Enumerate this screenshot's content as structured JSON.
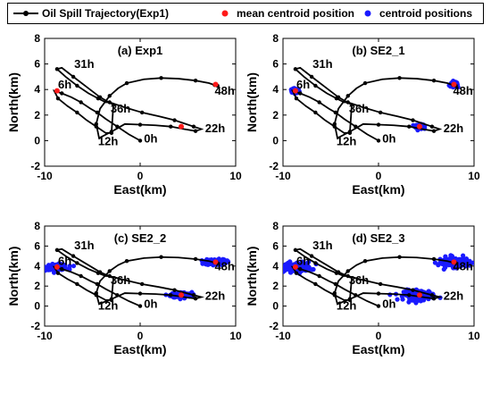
{
  "legend": {
    "trajectory": "Oil Spill Trajectory(Exp1)",
    "mean": "mean centroid position",
    "centroids": "centroid positions"
  },
  "colors": {
    "trajectory": "#000000",
    "mean": "#ff1a1a",
    "centroids": "#1a1aff"
  },
  "chart_data": [
    {
      "type": "scatter",
      "title": "(a) Exp1",
      "xlabel": "East(km)",
      "ylabel": "North(km)",
      "xlim": [
        -10,
        10
      ],
      "ylim": [
        -2,
        8
      ],
      "xticks": [
        -10,
        0,
        10
      ],
      "yticks": [
        -2,
        0,
        2,
        4,
        6,
        8
      ],
      "show_clouds": false
    },
    {
      "type": "scatter",
      "title": "(b) SE2_1",
      "xlabel": "East(km)",
      "ylabel": "North(km)",
      "xlim": [
        -10,
        10
      ],
      "ylim": [
        -2,
        8
      ],
      "xticks": [
        -10,
        0,
        10
      ],
      "yticks": [
        -2,
        0,
        2,
        4,
        6,
        8
      ],
      "show_clouds": true,
      "cloud_spread": [
        0.35,
        0.15
      ]
    },
    {
      "type": "scatter",
      "title": "(c) SE2_2",
      "xlabel": "East(km)",
      "ylabel": "North(km)",
      "xlim": [
        -10,
        10
      ],
      "ylim": [
        -2,
        8
      ],
      "xticks": [
        -10,
        0,
        10
      ],
      "yticks": [
        -2,
        0,
        2,
        4,
        6,
        8
      ],
      "show_clouds": true,
      "cloud_spread": [
        1.0,
        0.25
      ]
    },
    {
      "type": "scatter",
      "title": "(d) SE2_3",
      "xlabel": "East(km)",
      "ylabel": "North(km)",
      "xlim": [
        -10,
        10
      ],
      "ylim": [
        -2,
        8
      ],
      "xticks": [
        -10,
        0,
        10
      ],
      "yticks": [
        -2,
        0,
        2,
        4,
        6,
        8
      ],
      "show_clouds": true,
      "cloud_spread": [
        1.5,
        0.45
      ]
    }
  ],
  "trajectory": {
    "x": [
      0,
      -1.2,
      -2.4,
      -3.6,
      -4.5,
      -5.2,
      -6.2,
      -7.2,
      -8.2,
      -9.0,
      -8.6,
      -7.6,
      -6.6,
      -5.6,
      -4.6,
      -3.6,
      -3.0,
      -2.8,
      -4.2,
      -5.6,
      -7.0,
      -8.2,
      -8.7,
      -7.8,
      -6.6,
      -5.4,
      -4.4,
      -3.6,
      -3.2,
      -1.6,
      0.2,
      2.0,
      3.6,
      4.6,
      5.6,
      6.4,
      5.8,
      4.6,
      3.2,
      1.6,
      0,
      -1.6,
      -3.0,
      -4.3,
      -4.6,
      -4.2,
      -3.2,
      -2.3,
      -1.4,
      0.4,
      2.2,
      4.0,
      5.8,
      7.2,
      7.8,
      8.1
    ],
    "y": [
      0,
      0.5,
      1.1,
      1.7,
      2.2,
      2.5,
      3.0,
      3.4,
      3.7,
      3.9,
      3.3,
      2.7,
      2.2,
      1.6,
      1.1,
      0.6,
      0.6,
      2.8,
      3.4,
      4.2,
      5.0,
      5.7,
      5.6,
      5.0,
      4.3,
      3.7,
      3.3,
      3.0,
      3.0,
      2.6,
      2.2,
      1.9,
      1.6,
      1.35,
      1.1,
      0.9,
      0.75,
      0.9,
      1.1,
      1.2,
      1.25,
      1.3,
      0.7,
      0.2,
      1.3,
      2.5,
      3.5,
      4.1,
      4.5,
      4.8,
      4.9,
      4.85,
      4.7,
      4.5,
      4.35,
      4.3
    ]
  },
  "mean_positions": {
    "x": [
      -8.7,
      4.3,
      7.9
    ],
    "y": [
      3.9,
      1.1,
      4.4
    ]
  },
  "time_labels": [
    {
      "text": "0h",
      "x": 0.4,
      "y": -0.15
    },
    {
      "text": "6h",
      "x": -8.6,
      "y": 4.1
    },
    {
      "text": "12h",
      "x": -4.4,
      "y": -0.35
    },
    {
      "text": "22h",
      "x": 6.8,
      "y": 0.65
    },
    {
      "text": "31h",
      "x": -6.9,
      "y": 5.7
    },
    {
      "text": "36h",
      "x": -3.1,
      "y": 2.2
    },
    {
      "text": "48h",
      "x": 7.8,
      "y": 3.6
    }
  ]
}
